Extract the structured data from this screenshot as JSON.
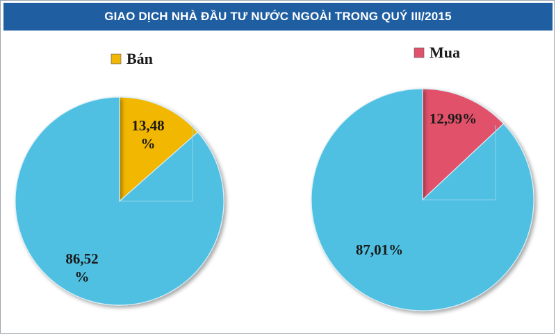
{
  "header": {
    "title": "GIAO DỊCH NHÀ ĐẦU TƯ NƯỚC NGOÀI TRONG QUÝ III/2015"
  },
  "colors": {
    "header_bg": "#1f5ea1",
    "rest_slice": "#50c0e2",
    "ban_slice": "#f2b705",
    "mua_slice": "#e2516b"
  },
  "chart_data": [
    {
      "type": "pie",
      "legend": {
        "label": "Bán",
        "color": "#f2b705",
        "placement": "top-left"
      },
      "slices": [
        {
          "value": 13.48,
          "label_lines": [
            "13,48",
            "%"
          ],
          "color": "#f2b705"
        },
        {
          "value": 86.52,
          "label_lines": [
            "86,52",
            "%"
          ],
          "color": "#50c0e2"
        }
      ]
    },
    {
      "type": "pie",
      "legend": {
        "label": "Mua",
        "color": "#e2516b",
        "placement": "top-center"
      },
      "slices": [
        {
          "value": 12.99,
          "label_lines": [
            "12,99%"
          ],
          "color": "#e2516b"
        },
        {
          "value": 87.01,
          "label_lines": [
            "87,01%"
          ],
          "color": "#50c0e2"
        }
      ]
    }
  ]
}
